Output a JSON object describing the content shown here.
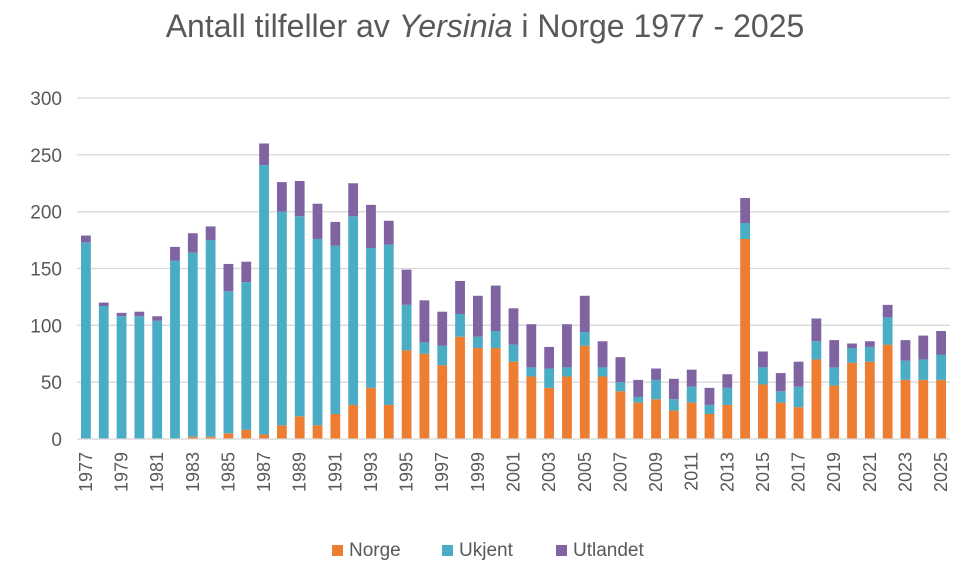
{
  "chart_data": {
    "type": "bar",
    "stacked": true,
    "title_prefix": "Antall tilfeller av ",
    "title_italic": "Yersinia",
    "title_suffix": " i Norge 1977 - 2025",
    "xlabel": "",
    "ylabel": "",
    "ylim": [
      0,
      300
    ],
    "yticks": [
      0,
      50,
      100,
      150,
      200,
      250,
      300
    ],
    "grid": true,
    "legend_position": "bottom",
    "categories": [
      "1977",
      "1978",
      "1979",
      "1980",
      "1981",
      "1982",
      "1983",
      "1984",
      "1985",
      "1986",
      "1987",
      "1988",
      "1989",
      "1990",
      "1991",
      "1992",
      "1993",
      "1994",
      "1995",
      "1996",
      "1997",
      "1998",
      "1999",
      "2000",
      "2001",
      "2002",
      "2003",
      "2004",
      "2005",
      "2006",
      "2007",
      "2008",
      "2009",
      "2010",
      "2011",
      "2012",
      "2013",
      "2014",
      "2015",
      "2016",
      "2017",
      "2018",
      "2019",
      "2020",
      "2021",
      "2022",
      "2023",
      "2024",
      "2025"
    ],
    "series": [
      {
        "name": "Norge",
        "color": "#ED7D31",
        "values": [
          0,
          0,
          0,
          0,
          0,
          0,
          2,
          2,
          5,
          8,
          4,
          12,
          20,
          12,
          22,
          30,
          45,
          30,
          78,
          75,
          65,
          90,
          80,
          80,
          68,
          55,
          45,
          55,
          82,
          55,
          42,
          32,
          35,
          25,
          32,
          22,
          30,
          176,
          48,
          32,
          28,
          70,
          47,
          67,
          68,
          83,
          52,
          52,
          52
        ]
      },
      {
        "name": "Ukjent",
        "color": "#4BACC6",
        "values": [
          173,
          117,
          108,
          108,
          104,
          157,
          162,
          173,
          125,
          130,
          237,
          188,
          176,
          164,
          148,
          166,
          123,
          141,
          40,
          10,
          17,
          20,
          10,
          15,
          15,
          8,
          17,
          8,
          12,
          8,
          8,
          5,
          17,
          10,
          14,
          8,
          15,
          14,
          15,
          10,
          18,
          16,
          16,
          13,
          13,
          24,
          17,
          18,
          22
        ]
      },
      {
        "name": "Utlandet",
        "color": "#8064A2",
        "values": [
          6,
          3,
          3,
          4,
          4,
          12,
          17,
          12,
          24,
          18,
          19,
          26,
          31,
          31,
          21,
          29,
          38,
          21,
          31,
          37,
          30,
          29,
          36,
          40,
          32,
          38,
          19,
          38,
          32,
          23,
          22,
          15,
          10,
          18,
          15,
          15,
          12,
          22,
          14,
          16,
          22,
          20,
          24,
          4,
          5,
          11,
          18,
          21,
          21
        ]
      }
    ]
  }
}
